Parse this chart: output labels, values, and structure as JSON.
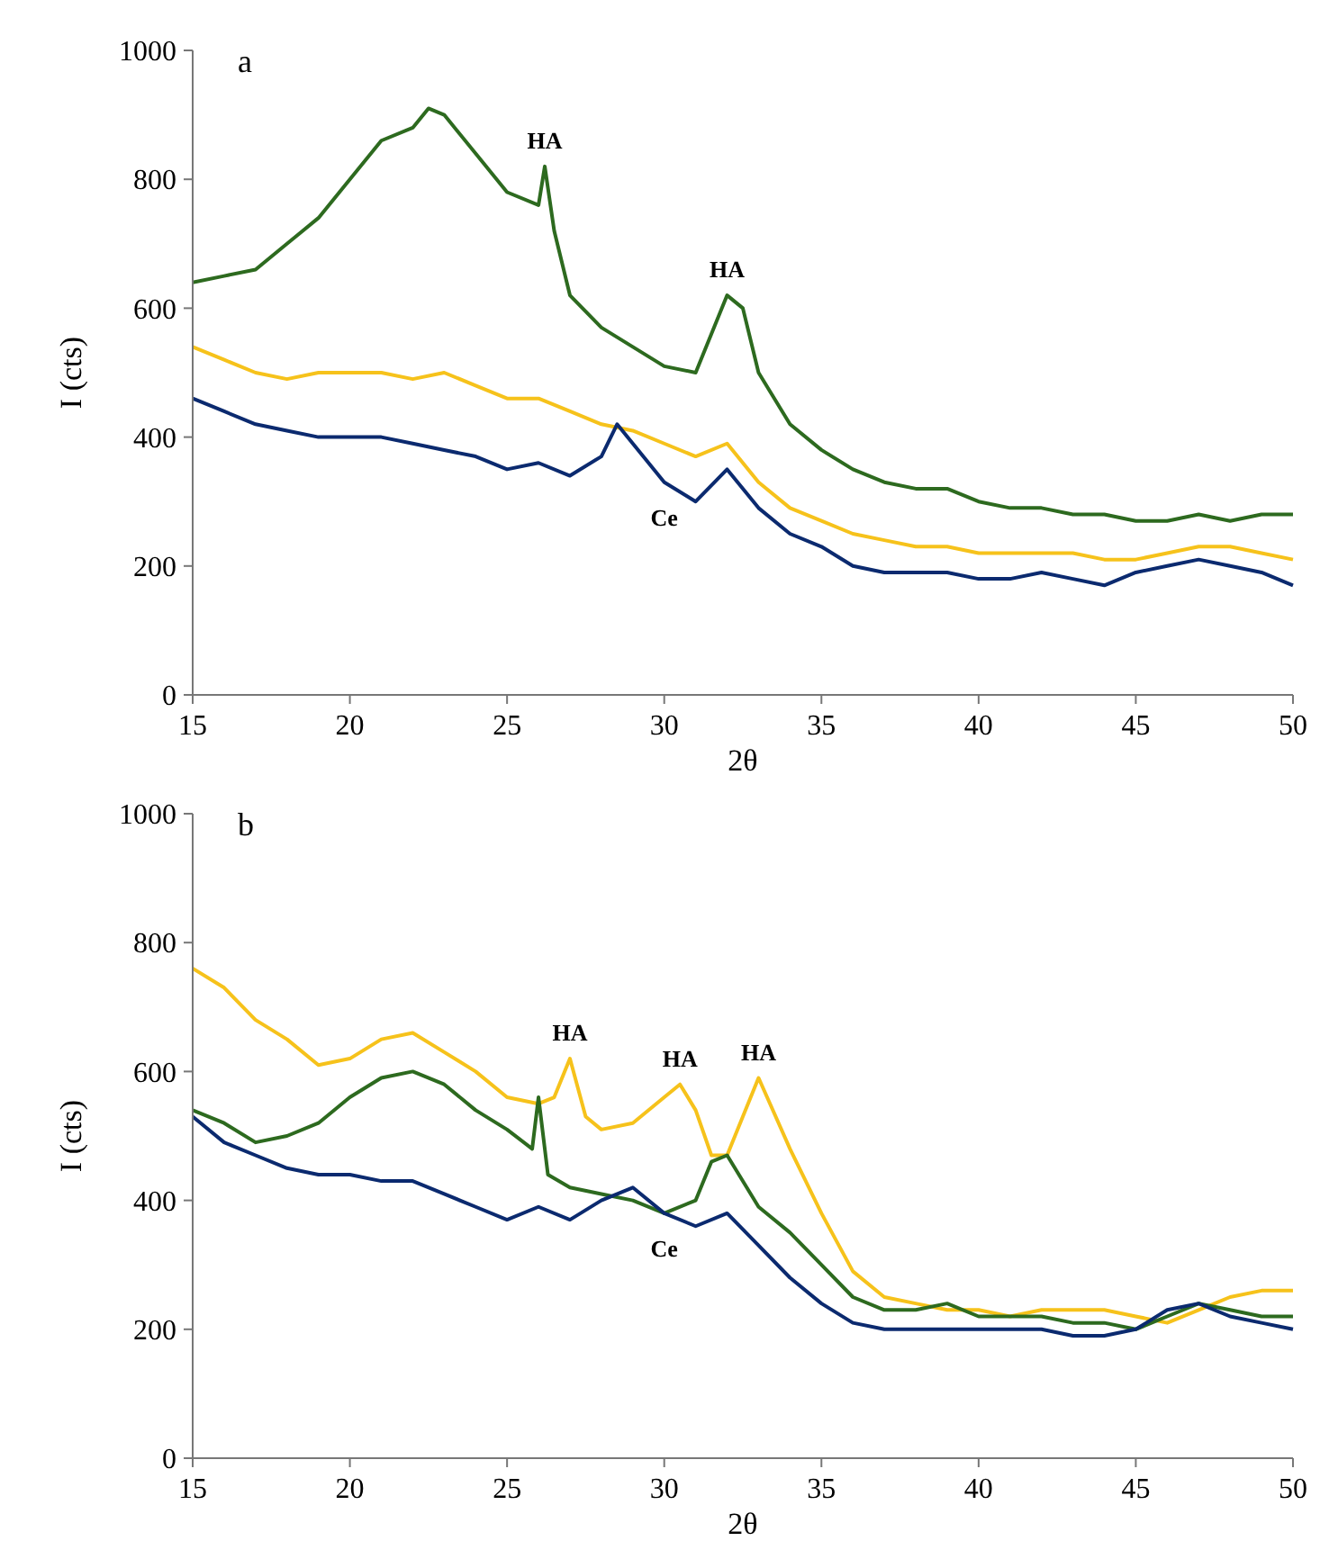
{
  "chart_data": [
    {
      "type": "line",
      "title": "a",
      "xlabel": "2θ",
      "ylabel": "I (cts)",
      "xlim": [
        15,
        50
      ],
      "xticks": [
        15,
        20,
        25,
        30,
        35,
        40,
        45,
        50
      ],
      "ylim": [
        0,
        1000
      ],
      "yticks": [
        0,
        200,
        400,
        600,
        800,
        1000
      ],
      "grid": false,
      "marker": "none",
      "line_style": "solid",
      "annotations": [
        {
          "text": "HA",
          "x": 26.2,
          "y": 820
        },
        {
          "text": "HA",
          "x": 32,
          "y": 620
        },
        {
          "text": "Ce",
          "x": 30,
          "y": 330
        }
      ],
      "series": [
        {
          "color": "#2d6a1f",
          "x": [
            15,
            16,
            17,
            18,
            19,
            20,
            21,
            22,
            22.5,
            23,
            24,
            25,
            26,
            26.2,
            26.5,
            27,
            28,
            29,
            30,
            31,
            31.5,
            32,
            32.5,
            33,
            34,
            35,
            36,
            37,
            38,
            39,
            40,
            41,
            42,
            43,
            44,
            45,
            46,
            47,
            48,
            49,
            50
          ],
          "values": [
            640,
            650,
            660,
            700,
            740,
            800,
            860,
            880,
            910,
            900,
            840,
            780,
            760,
            820,
            720,
            620,
            570,
            540,
            510,
            500,
            560,
            620,
            600,
            500,
            420,
            380,
            350,
            330,
            320,
            320,
            300,
            290,
            290,
            280,
            280,
            270,
            270,
            280,
            270,
            280,
            280
          ]
        },
        {
          "color": "#f6c21b",
          "x": [
            15,
            16,
            17,
            18,
            19,
            20,
            21,
            22,
            23,
            24,
            25,
            26,
            27,
            28,
            29,
            30,
            31,
            32,
            33,
            34,
            35,
            36,
            37,
            38,
            39,
            40,
            41,
            42,
            43,
            44,
            45,
            46,
            47,
            48,
            49,
            50
          ],
          "values": [
            540,
            520,
            500,
            490,
            500,
            500,
            500,
            490,
            500,
            480,
            460,
            460,
            440,
            420,
            410,
            390,
            370,
            390,
            330,
            290,
            270,
            250,
            240,
            230,
            230,
            220,
            220,
            220,
            220,
            210,
            210,
            220,
            230,
            230,
            220,
            210
          ]
        },
        {
          "color": "#0b2a6f",
          "x": [
            15,
            16,
            17,
            18,
            19,
            20,
            21,
            22,
            23,
            24,
            25,
            26,
            27,
            28,
            28.5,
            29,
            30,
            31,
            32,
            33,
            34,
            35,
            36,
            37,
            38,
            39,
            40,
            41,
            42,
            43,
            44,
            45,
            46,
            47,
            48,
            49,
            50
          ],
          "values": [
            460,
            440,
            420,
            410,
            400,
            400,
            400,
            390,
            380,
            370,
            350,
            360,
            340,
            370,
            420,
            390,
            330,
            300,
            350,
            290,
            250,
            230,
            200,
            190,
            190,
            190,
            180,
            180,
            190,
            180,
            170,
            190,
            200,
            210,
            200,
            190,
            170
          ]
        }
      ]
    },
    {
      "type": "line",
      "title": "b",
      "xlabel": "2θ",
      "ylabel": "I (cts)",
      "xlim": [
        15,
        50
      ],
      "xticks": [
        15,
        20,
        25,
        30,
        35,
        40,
        45,
        50
      ],
      "ylim": [
        0,
        1000
      ],
      "yticks": [
        0,
        200,
        400,
        600,
        800,
        1000
      ],
      "grid": false,
      "marker": "none",
      "line_style": "solid",
      "annotations": [
        {
          "text": "HA",
          "x": 27,
          "y": 620
        },
        {
          "text": "HA",
          "x": 30.5,
          "y": 580
        },
        {
          "text": "HA",
          "x": 33,
          "y": 590
        },
        {
          "text": "Ce",
          "x": 30,
          "y": 380
        }
      ],
      "series": [
        {
          "color": "#f6c21b",
          "x": [
            15,
            16,
            17,
            18,
            19,
            20,
            21,
            22,
            23,
            24,
            25,
            26,
            26.5,
            27,
            27.5,
            28,
            29,
            30,
            30.5,
            31,
            31.5,
            32,
            33,
            34,
            35,
            36,
            37,
            38,
            39,
            40,
            41,
            42,
            43,
            44,
            45,
            46,
            47,
            48,
            49,
            50
          ],
          "values": [
            760,
            730,
            680,
            650,
            610,
            620,
            650,
            660,
            630,
            600,
            560,
            550,
            560,
            620,
            530,
            510,
            520,
            560,
            580,
            540,
            470,
            470,
            590,
            480,
            380,
            290,
            250,
            240,
            230,
            230,
            220,
            230,
            230,
            230,
            220,
            210,
            230,
            250,
            260,
            260
          ]
        },
        {
          "color": "#2d6a1f",
          "x": [
            15,
            16,
            17,
            18,
            19,
            20,
            21,
            22,
            23,
            24,
            25,
            25.8,
            26,
            26.3,
            27,
            28,
            29,
            30,
            31,
            31.5,
            32,
            33,
            34,
            35,
            36,
            37,
            38,
            39,
            40,
            41,
            42,
            43,
            44,
            45,
            46,
            47,
            48,
            49,
            50
          ],
          "values": [
            540,
            520,
            490,
            500,
            520,
            560,
            590,
            600,
            580,
            540,
            510,
            480,
            560,
            440,
            420,
            410,
            400,
            380,
            400,
            460,
            470,
            390,
            350,
            300,
            250,
            230,
            230,
            240,
            220,
            220,
            220,
            210,
            210,
            200,
            220,
            240,
            230,
            220,
            220
          ]
        },
        {
          "color": "#0b2a6f",
          "x": [
            15,
            16,
            17,
            18,
            19,
            20,
            21,
            22,
            23,
            24,
            25,
            26,
            27,
            28,
            29,
            30,
            31,
            32,
            33,
            34,
            35,
            36,
            37,
            38,
            39,
            40,
            41,
            42,
            43,
            44,
            45,
            46,
            47,
            48,
            49,
            50
          ],
          "values": [
            530,
            490,
            470,
            450,
            440,
            440,
            430,
            430,
            410,
            390,
            370,
            390,
            370,
            400,
            420,
            380,
            360,
            380,
            330,
            280,
            240,
            210,
            200,
            200,
            200,
            200,
            200,
            200,
            190,
            190,
            200,
            230,
            240,
            220,
            210,
            200
          ]
        }
      ]
    }
  ]
}
